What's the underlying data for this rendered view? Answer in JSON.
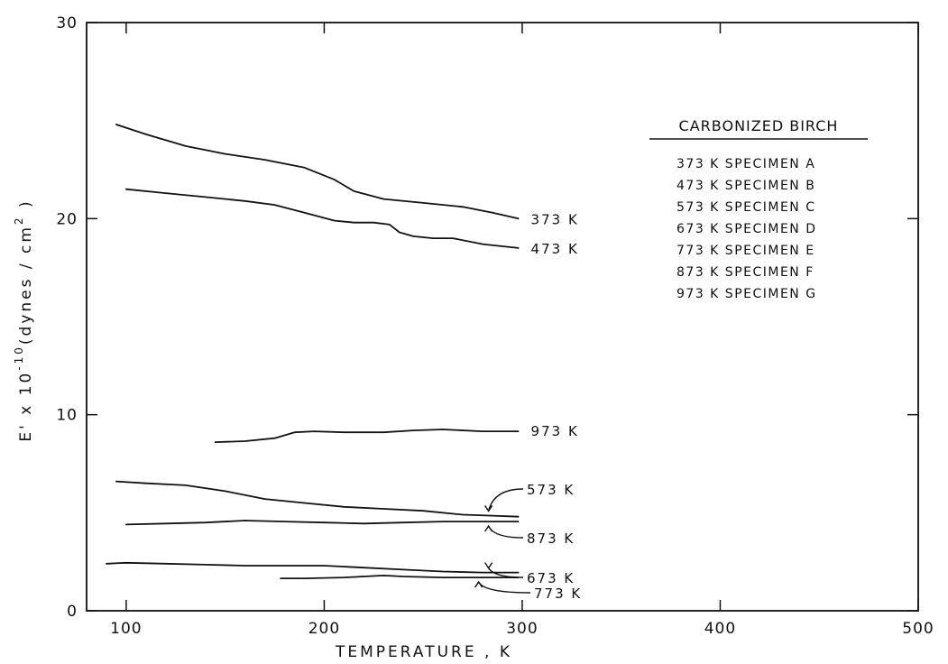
{
  "chart_data": {
    "type": "line",
    "xlabel": "TEMPERATURE , K",
    "ylabel": {
      "prefix": "E' x 10",
      "exponent": "-10",
      "units_open": "(dynes / cm",
      "units_exp": "2",
      "units_close": " )"
    },
    "xlim": [
      80,
      500
    ],
    "ylim": [
      0,
      30
    ],
    "xticks": [
      100,
      200,
      300,
      400,
      500
    ],
    "yticks": [
      0,
      10,
      20,
      30
    ],
    "grid": false,
    "legend": {
      "title": "CARBONIZED BIRCH",
      "entries": [
        "373 K SPECIMEN A",
        "473 K SPECIMEN B",
        "573 K SPECIMEN C",
        "673 K SPECIMEN D",
        "773 K SPECIMEN E",
        "873 K SPECIMEN F",
        "973 K SPECIMEN G"
      ]
    },
    "series": [
      {
        "name": "373 K",
        "label": "373 K",
        "x": [
          95,
          110,
          130,
          150,
          170,
          190,
          205,
          215,
          230,
          250,
          270,
          285,
          298
        ],
        "y": [
          24.8,
          24.3,
          23.7,
          23.3,
          23.0,
          22.6,
          22.0,
          21.4,
          21.0,
          20.8,
          20.6,
          20.3,
          20.0
        ]
      },
      {
        "name": "473 K",
        "label": "473 K",
        "x": [
          100,
          120,
          140,
          160,
          175,
          190,
          205,
          215,
          225,
          233,
          238,
          245,
          255,
          265,
          280,
          298
        ],
        "y": [
          21.5,
          21.3,
          21.1,
          20.9,
          20.7,
          20.3,
          19.9,
          19.8,
          19.8,
          19.7,
          19.3,
          19.1,
          19.0,
          19.0,
          18.7,
          18.5
        ]
      },
      {
        "name": "573 K",
        "label": "573 K",
        "x": [
          95,
          110,
          130,
          150,
          170,
          190,
          210,
          230,
          250,
          270,
          285,
          298
        ],
        "y": [
          6.6,
          6.5,
          6.4,
          6.1,
          5.7,
          5.5,
          5.3,
          5.2,
          5.1,
          4.9,
          4.85,
          4.8
        ]
      },
      {
        "name": "673 K",
        "label": "673 K",
        "x": [
          90,
          100,
          120,
          140,
          160,
          180,
          200,
          220,
          240,
          260,
          280,
          298
        ],
        "y": [
          2.4,
          2.45,
          2.4,
          2.35,
          2.3,
          2.3,
          2.3,
          2.2,
          2.1,
          2.0,
          1.95,
          1.95
        ]
      },
      {
        "name": "773 K",
        "label": "773 K",
        "x": [
          178,
          190,
          210,
          230,
          240,
          260,
          280,
          298
        ],
        "y": [
          1.65,
          1.65,
          1.7,
          1.8,
          1.75,
          1.7,
          1.7,
          1.7
        ]
      },
      {
        "name": "873 K",
        "label": "873 K",
        "x": [
          100,
          120,
          140,
          160,
          180,
          200,
          220,
          240,
          260,
          280,
          298
        ],
        "y": [
          4.4,
          4.45,
          4.5,
          4.6,
          4.55,
          4.5,
          4.45,
          4.5,
          4.55,
          4.55,
          4.55
        ]
      },
      {
        "name": "973 K",
        "label": "973 K",
        "x": [
          145,
          160,
          175,
          185,
          195,
          210,
          230,
          245,
          260,
          280,
          298
        ],
        "y": [
          8.6,
          8.65,
          8.8,
          9.1,
          9.15,
          9.1,
          9.1,
          9.2,
          9.25,
          9.15,
          9.15
        ]
      }
    ]
  }
}
